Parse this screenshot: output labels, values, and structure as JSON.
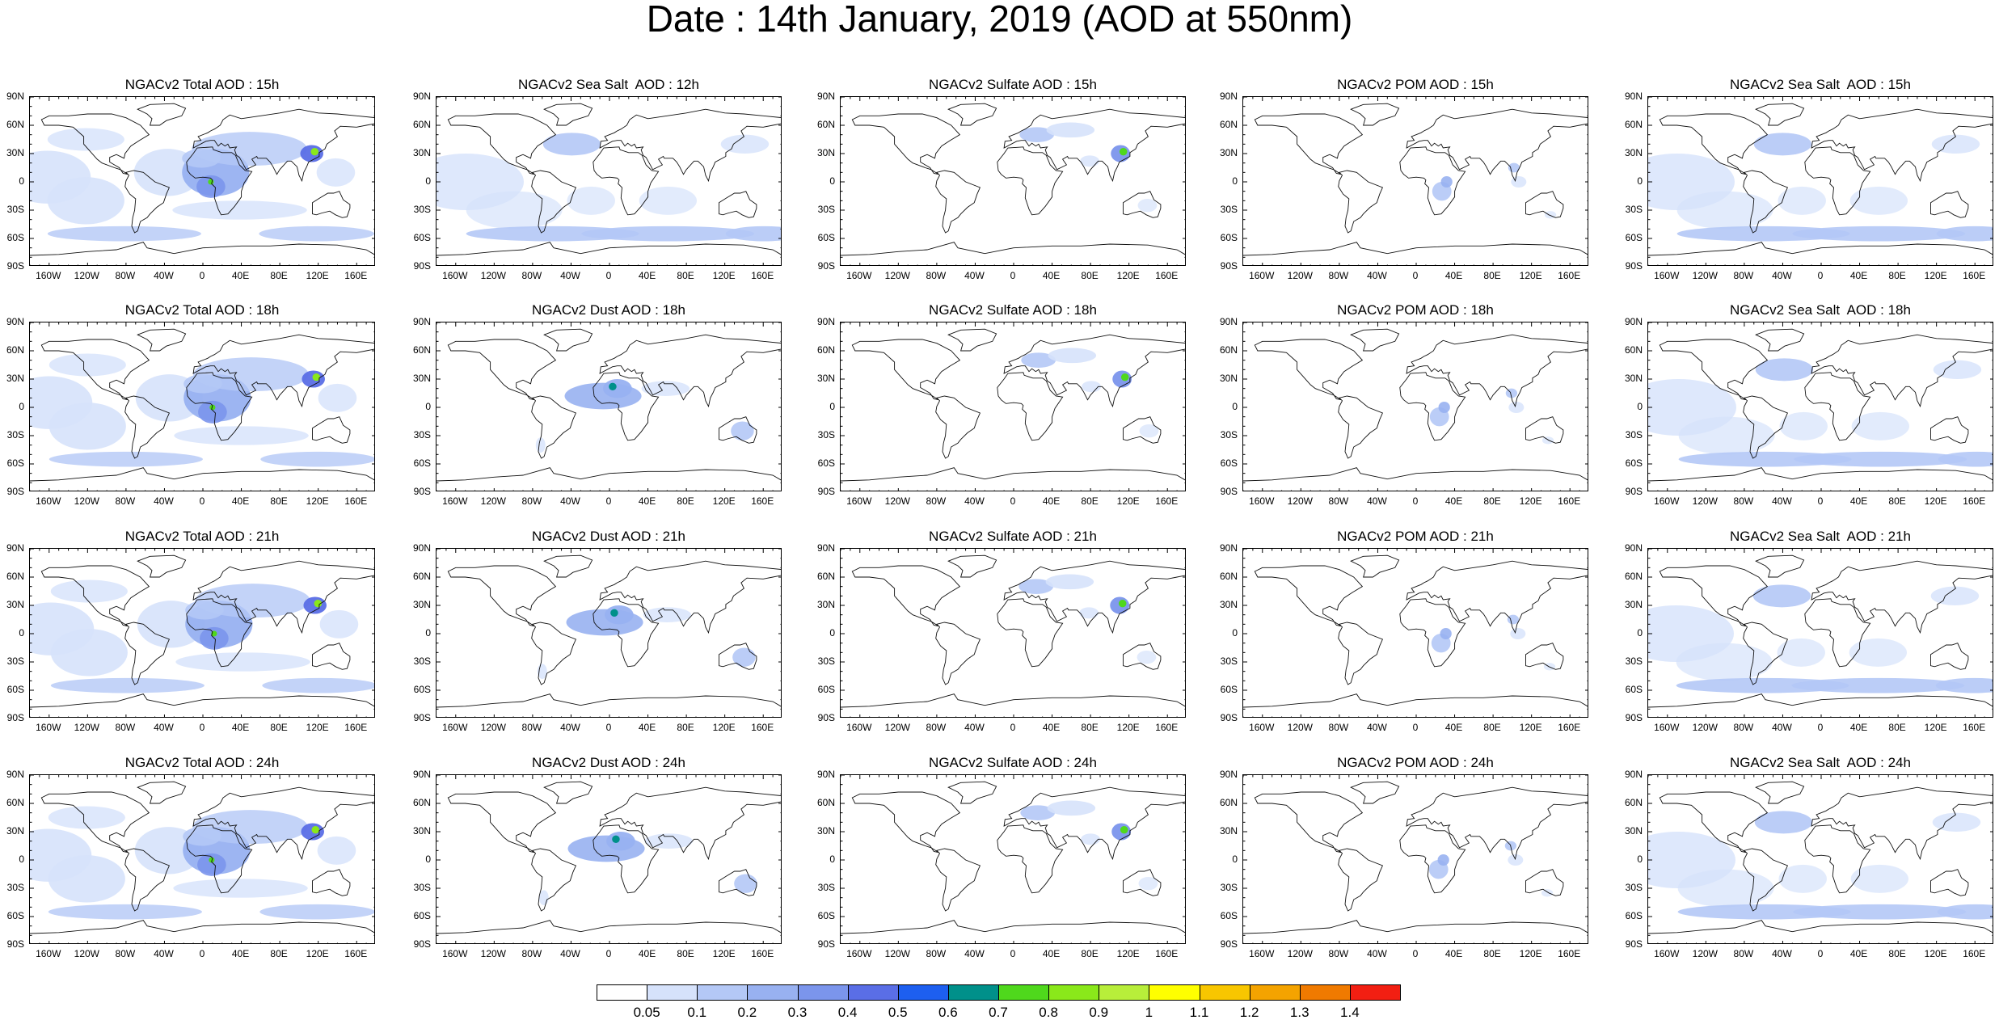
{
  "title": "Date : 14th January, 2019 (AOD at 550nm)",
  "panels": [
    [
      "NGACv2 Total AOD : 15h",
      "NGACv2 Sea Salt  AOD : 12h",
      "NGACv2 Sulfate AOD : 15h",
      "NGACv2 POM AOD : 15h",
      "NGACv2 Sea Salt  AOD : 15h"
    ],
    [
      "NGACv2 Total AOD : 18h",
      "NGACv2 Dust AOD : 18h",
      "NGACv2 Sulfate AOD : 18h",
      "NGACv2 POM AOD : 18h",
      "NGACv2 Sea Salt  AOD : 18h"
    ],
    [
      "NGACv2 Total AOD : 21h",
      "NGACv2 Dust AOD : 21h",
      "NGACv2 Sulfate AOD : 21h",
      "NGACv2 POM AOD : 21h",
      "NGACv2 Sea Salt  AOD : 21h"
    ],
    [
      "NGACv2 Total AOD : 24h",
      "NGACv2 Dust AOD : 24h",
      "NGACv2 Sulfate AOD : 24h",
      "NGACv2 POM AOD : 24h",
      "NGACv2 Sea Salt  AOD : 24h"
    ]
  ],
  "lat_labels": [
    "90N",
    "60N",
    "30N",
    "0",
    "30S",
    "60S",
    "90S"
  ],
  "lon_labels": [
    "160W",
    "120W",
    "80W",
    "40W",
    "0",
    "40E",
    "80E",
    "120E",
    "160E"
  ],
  "lon_values": [
    -160,
    -120,
    -80,
    -40,
    0,
    40,
    80,
    120,
    160
  ],
  "lat_values": [
    90,
    60,
    30,
    0,
    -30,
    -60,
    -90
  ],
  "colorbar": {
    "labels": [
      "0.05",
      "0.1",
      "0.2",
      "0.3",
      "0.4",
      "0.5",
      "0.6",
      "0.7",
      "0.8",
      "0.9",
      "1",
      "1.1",
      "1.2",
      "1.3",
      "1.4"
    ],
    "colors": [
      "#ffffff",
      "#d6e2fb",
      "#b4c8f6",
      "#98b1f1",
      "#7b95ec",
      "#5a6ee6",
      "#1d5ff0",
      "#00908a",
      "#4fd81c",
      "#8ae81a",
      "#b8ee3a",
      "#ffff00",
      "#f8c600",
      "#f4a300",
      "#f07a00",
      "#f21f12"
    ]
  }
}
